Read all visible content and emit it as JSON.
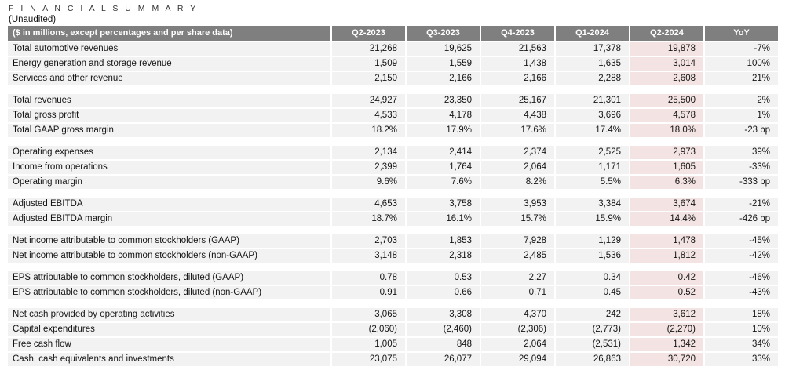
{
  "page": {
    "title": "F I N A N C I A L   S U M M A R Y",
    "subtitle": "(Unaudited)"
  },
  "colors": {
    "header_bg": "#7f7f7f",
    "header_text": "#ffffff",
    "row_bg": "#f2f2f2",
    "highlight_bg": "#f3e3e2",
    "text": "#141414"
  },
  "table": {
    "label_header": "($ in millions, except percentages and per share data)",
    "columns": [
      "Q2-2023",
      "Q3-2023",
      "Q4-2023",
      "Q1-2024",
      "Q2-2024",
      "YoY"
    ],
    "highlight_column": "Q2-2024",
    "highlight_column_index": 4,
    "sections": [
      {
        "rows": [
          {
            "label": "Total automotive revenues",
            "values": [
              "21,268",
              "19,625",
              "21,563",
              "17,378",
              "19,878",
              "-7%"
            ]
          },
          {
            "label": "Energy generation and storage revenue",
            "values": [
              "1,509",
              "1,559",
              "1,438",
              "1,635",
              "3,014",
              "100%"
            ]
          },
          {
            "label": "Services and other revenue",
            "values": [
              "2,150",
              "2,166",
              "2,166",
              "2,288",
              "2,608",
              "21%"
            ]
          }
        ]
      },
      {
        "rows": [
          {
            "label": "Total revenues",
            "values": [
              "24,927",
              "23,350",
              "25,167",
              "21,301",
              "25,500",
              "2%"
            ]
          },
          {
            "label": "Total gross profit",
            "values": [
              "4,533",
              "4,178",
              "4,438",
              "3,696",
              "4,578",
              "1%"
            ]
          },
          {
            "label": "Total GAAP gross margin",
            "values": [
              "18.2%",
              "17.9%",
              "17.6%",
              "17.4%",
              "18.0%",
              "-23 bp"
            ]
          }
        ]
      },
      {
        "rows": [
          {
            "label": "Operating expenses",
            "values": [
              "2,134",
              "2,414",
              "2,374",
              "2,525",
              "2,973",
              "39%"
            ]
          },
          {
            "label": "Income from operations",
            "values": [
              "2,399",
              "1,764",
              "2,064",
              "1,171",
              "1,605",
              "-33%"
            ]
          },
          {
            "label": "Operating margin",
            "values": [
              "9.6%",
              "7.6%",
              "8.2%",
              "5.5%",
              "6.3%",
              "-333 bp"
            ]
          }
        ]
      },
      {
        "rows": [
          {
            "label": "Adjusted EBITDA",
            "values": [
              "4,653",
              "3,758",
              "3,953",
              "3,384",
              "3,674",
              "-21%"
            ]
          },
          {
            "label": "Adjusted EBITDA margin",
            "values": [
              "18.7%",
              "16.1%",
              "15.7%",
              "15.9%",
              "14.4%",
              "-426 bp"
            ]
          }
        ]
      },
      {
        "rows": [
          {
            "label": "Net income attributable to common stockholders (GAAP)",
            "values": [
              "2,703",
              "1,853",
              "7,928",
              "1,129",
              "1,478",
              "-45%"
            ]
          },
          {
            "label": "Net income attributable to common stockholders (non-GAAP)",
            "values": [
              "3,148",
              "2,318",
              "2,485",
              "1,536",
              "1,812",
              "-42%"
            ]
          }
        ]
      },
      {
        "rows": [
          {
            "label": "EPS attributable to common stockholders, diluted (GAAP)",
            "values": [
              "0.78",
              "0.53",
              "2.27",
              "0.34",
              "0.42",
              "-46%"
            ]
          },
          {
            "label": "EPS attributable to common stockholders, diluted (non-GAAP)",
            "values": [
              "0.91",
              "0.66",
              "0.71",
              "0.45",
              "0.52",
              "-43%"
            ]
          }
        ]
      },
      {
        "rows": [
          {
            "label": "Net cash provided by operating activities",
            "values": [
              "3,065",
              "3,308",
              "4,370",
              "242",
              "3,612",
              "18%"
            ]
          },
          {
            "label": "Capital expenditures",
            "values": [
              "(2,060)",
              "(2,460)",
              "(2,306)",
              "(2,773)",
              "(2,270)",
              "10%"
            ]
          },
          {
            "label": "Free cash flow",
            "values": [
              "1,005",
              "848",
              "2,064",
              "(2,531)",
              "1,342",
              "34%"
            ]
          },
          {
            "label": "Cash, cash equivalents and investments",
            "values": [
              "23,075",
              "26,077",
              "29,094",
              "26,863",
              "30,720",
              "33%"
            ]
          }
        ]
      }
    ]
  }
}
